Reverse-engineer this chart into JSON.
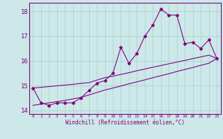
{
  "xlabel": "Windchill (Refroidissement éolien,°C)",
  "x": [
    0,
    1,
    2,
    3,
    4,
    5,
    6,
    7,
    8,
    9,
    10,
    11,
    12,
    13,
    14,
    15,
    16,
    17,
    18,
    19,
    20,
    21,
    22,
    23
  ],
  "y_main": [
    14.9,
    14.3,
    14.2,
    14.3,
    14.3,
    14.3,
    14.5,
    14.8,
    15.1,
    15.2,
    15.5,
    16.55,
    15.9,
    16.3,
    17.0,
    17.45,
    18.1,
    17.85,
    17.85,
    16.7,
    16.75,
    16.5,
    16.85,
    16.1
  ],
  "y_linear1": [
    14.9,
    14.93,
    14.96,
    14.99,
    15.02,
    15.05,
    15.09,
    15.12,
    15.22,
    15.32,
    15.38,
    15.45,
    15.52,
    15.6,
    15.67,
    15.74,
    15.81,
    15.88,
    15.95,
    16.02,
    16.09,
    16.16,
    16.23,
    16.1
  ],
  "y_linear2": [
    14.2,
    14.25,
    14.3,
    14.35,
    14.4,
    14.46,
    14.52,
    14.62,
    14.72,
    14.82,
    14.9,
    14.98,
    15.07,
    15.15,
    15.23,
    15.32,
    15.4,
    15.48,
    15.57,
    15.65,
    15.73,
    15.82,
    15.9,
    16.1
  ],
  "color": "#800080",
  "bg_color": "#cce8e8",
  "grid_color": "#aacccc",
  "ylim": [
    13.85,
    18.35
  ],
  "yticks": [
    14,
    15,
    16,
    17,
    18
  ],
  "xticks": [
    0,
    1,
    2,
    3,
    4,
    5,
    6,
    7,
    8,
    9,
    10,
    11,
    12,
    13,
    14,
    15,
    16,
    17,
    18,
    19,
    20,
    21,
    22,
    23
  ]
}
